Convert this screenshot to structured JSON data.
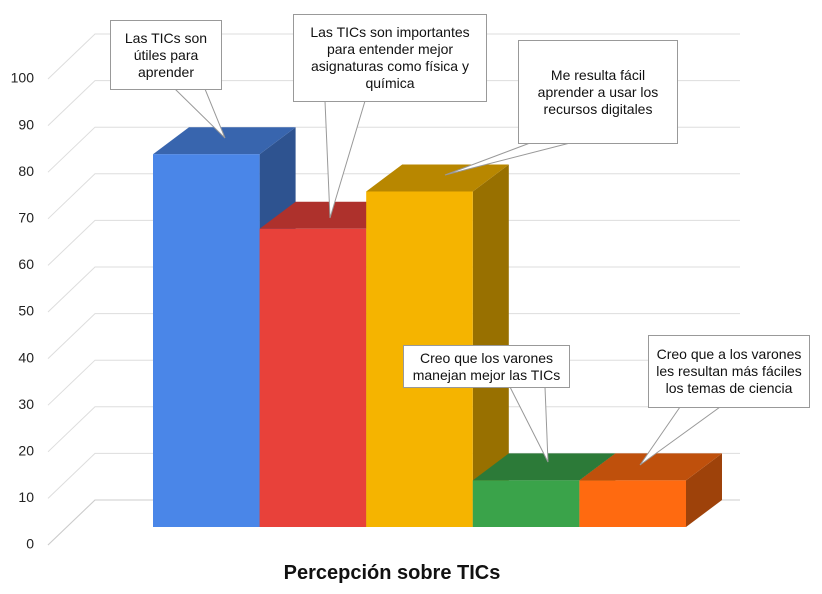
{
  "chart_data": {
    "type": "bar3d",
    "x_label": "Percepción sobre TICs",
    "categories": [
      "Las TICs son útiles para aprender",
      "Las TICs son importantes para entender mejor asignaturas como física y química",
      "Me resulta fácil aprender a usar los recursos digitales",
      "Creo que los varones manejan mejor las TICs",
      "Creo que a los varones les resultan más fáciles los temas de ciencia"
    ],
    "values": [
      80,
      64,
      72,
      10,
      10
    ],
    "colors": [
      "#4a86e8",
      "#e8413a",
      "#f5b400",
      "#3aa34a",
      "#ff6a10"
    ],
    "ylim": [
      0,
      100
    ],
    "yticks": [
      0,
      10,
      20,
      30,
      40,
      50,
      60,
      70,
      80,
      90,
      100
    ],
    "grid": true
  }
}
